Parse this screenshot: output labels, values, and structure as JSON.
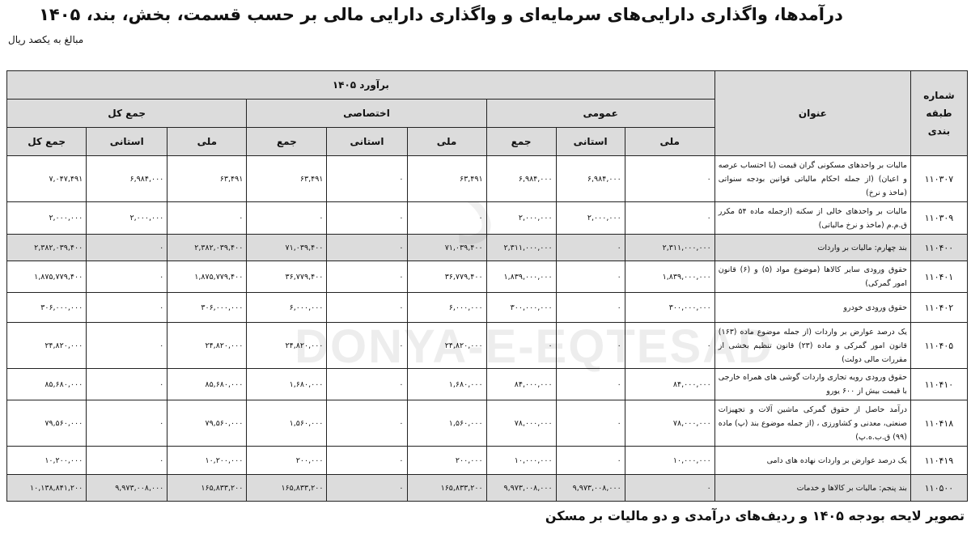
{
  "title": "درآمدها، واگذاری دارایی‌های سرمایه‌ای و واگذاری دارایی مالی بر حسب قسمت، بخش، بند، ۱۴۰۵",
  "unit": "مبالغ به یکصد ریال",
  "watermark": "DONYA-E-EQTESAD",
  "caption": "تصویر لایحه بودجه ۱۴۰۵ و ردیف‌های درآمدی و دو مالیات بر مسکن",
  "colors": {
    "header_bg": "#dcdcdc",
    "border": "#222222"
  },
  "headers": {
    "code": "شماره طبقه بندی",
    "desc": "عنوان",
    "estimate": "برآورد ۱۴۰۵",
    "groups": [
      "عمومی",
      "اختصاصی",
      "جمع کل"
    ],
    "sub": [
      "ملی",
      "استانی",
      "جمع",
      "ملی",
      "استانی",
      "جمع",
      "ملی",
      "استانی",
      "جمع کل"
    ]
  },
  "rows": [
    {
      "code": "۱۱۰۳۰۷",
      "shaded": false,
      "desc": "مالیات بر واحدهای مسکونی گران قیمت (با احتساب عرصه و اعیان) (از جمله احکام مالیاتی قوانین بودجه سنواتی (ماخذ و نرخ)",
      "values": [
        "۰",
        "۶,۹۸۴,۰۰۰",
        "۶,۹۸۴,۰۰۰",
        "۶۳,۴۹۱",
        "۰",
        "۶۳,۴۹۱",
        "۶۳,۴۹۱",
        "۶,۹۸۴,۰۰۰",
        "۷,۰۴۷,۴۹۱"
      ]
    },
    {
      "code": "۱۱۰۳۰۹",
      "shaded": false,
      "desc": "مالیات بر واحدهای خالی از سکنه (ازجمله ماده ۵۴ مکرر ق.م.م (ماخذ و نرخ مالیاتی)",
      "values": [
        "۰",
        "۲,۰۰۰,۰۰۰",
        "۲,۰۰۰,۰۰۰",
        "۰",
        "۰",
        "۰",
        "۰",
        "۲,۰۰۰,۰۰۰",
        "۲,۰۰۰,۰۰۰"
      ]
    },
    {
      "code": "۱۱۰۴۰۰",
      "shaded": true,
      "desc": "بند چهارم: مالیات بر واردات",
      "values": [
        "۲,۳۱۱,۰۰۰,۰۰۰",
        "۰",
        "۲,۳۱۱,۰۰۰,۰۰۰",
        "۷۱,۰۳۹,۴۰۰",
        "۰",
        "۷۱,۰۳۹,۴۰۰",
        "۲,۳۸۲,۰۳۹,۴۰۰",
        "۰",
        "۲,۳۸۲,۰۳۹,۴۰۰"
      ]
    },
    {
      "code": "۱۱۰۴۰۱",
      "shaded": false,
      "desc": "حقوق ورودی سایر کالاها (موضوع مواد (۵) و (۶) قانون امور گمرکی)",
      "values": [
        "۱,۸۳۹,۰۰۰,۰۰۰",
        "۰",
        "۱,۸۳۹,۰۰۰,۰۰۰",
        "۳۶,۷۷۹,۴۰۰",
        "۰",
        "۳۶,۷۷۹,۴۰۰",
        "۱,۸۷۵,۷۷۹,۴۰۰",
        "۰",
        "۱,۸۷۵,۷۷۹,۴۰۰"
      ]
    },
    {
      "code": "۱۱۰۴۰۲",
      "shaded": false,
      "desc": "حقوق ورودی خودرو",
      "values": [
        "۳۰۰,۰۰۰,۰۰۰",
        "۰",
        "۳۰۰,۰۰۰,۰۰۰",
        "۶,۰۰۰,۰۰۰",
        "۰",
        "۶,۰۰۰,۰۰۰",
        "۳۰۶,۰۰۰,۰۰۰",
        "۰",
        "۳۰۶,۰۰۰,۰۰۰"
      ]
    },
    {
      "code": "۱۱۰۴۰۵",
      "shaded": false,
      "desc": "یک درصد عوارض بر واردات (از جمله موضوع ماده (۱۶۳) قانون امور گمرکی و ماده (۲۳) قانون تنظیم بخشی از مقررات مالی دولت)",
      "values": [
        "۰",
        "۰",
        "۰",
        "۲۴,۸۲۰,۰۰۰",
        "۰",
        "۲۴,۸۲۰,۰۰۰",
        "۲۴,۸۲۰,۰۰۰",
        "۰",
        "۲۴,۸۲۰,۰۰۰"
      ]
    },
    {
      "code": "۱۱۰۴۱۰",
      "shaded": false,
      "desc": "حقوق ورودی رویه تجاری واردات گوشی های همراه خارجی با قیمت بیش از ۶۰۰ یورو",
      "values": [
        "۸۴,۰۰۰,۰۰۰",
        "۰",
        "۸۴,۰۰۰,۰۰۰",
        "۱,۶۸۰,۰۰۰",
        "۰",
        "۱,۶۸۰,۰۰۰",
        "۸۵,۶۸۰,۰۰۰",
        "۰",
        "۸۵,۶۸۰,۰۰۰"
      ]
    },
    {
      "code": "۱۱۰۴۱۸",
      "shaded": false,
      "desc": "درآمد حاصل از حقوق گمرکی ماشین آلات و تجهیزات صنعتی، معدنی و کشاورزی ، (از جمله موضوع بند (پ) ماده (۹۹) ق.ب.ه.پ)",
      "values": [
        "۷۸,۰۰۰,۰۰۰",
        "۰",
        "۷۸,۰۰۰,۰۰۰",
        "۱,۵۶۰,۰۰۰",
        "۰",
        "۱,۵۶۰,۰۰۰",
        "۷۹,۵۶۰,۰۰۰",
        "۰",
        "۷۹,۵۶۰,۰۰۰"
      ]
    },
    {
      "code": "۱۱۰۴۱۹",
      "shaded": false,
      "desc": "یک درصد عوارض بر واردات نهاده های دامی",
      "values": [
        "۱۰,۰۰۰,۰۰۰",
        "۰",
        "۱۰,۰۰۰,۰۰۰",
        "۲۰۰,۰۰۰",
        "۰",
        "۲۰۰,۰۰۰",
        "۱۰,۲۰۰,۰۰۰",
        "۰",
        "۱۰,۲۰۰,۰۰۰"
      ]
    },
    {
      "code": "۱۱۰۵۰۰",
      "shaded": true,
      "desc": "بند پنجم: مالیات بر کالاها و خدمات",
      "values": [
        "۰",
        "۹,۹۷۳,۰۰۸,۰۰۰",
        "۹,۹۷۳,۰۰۸,۰۰۰",
        "۱۶۵,۸۳۳,۲۰۰",
        "۰",
        "۱۶۵,۸۳۳,۲۰۰",
        "۱۶۵,۸۳۳,۲۰۰",
        "۹,۹۷۳,۰۰۸,۰۰۰",
        "۱۰,۱۳۸,۸۴۱,۲۰۰"
      ]
    }
  ]
}
